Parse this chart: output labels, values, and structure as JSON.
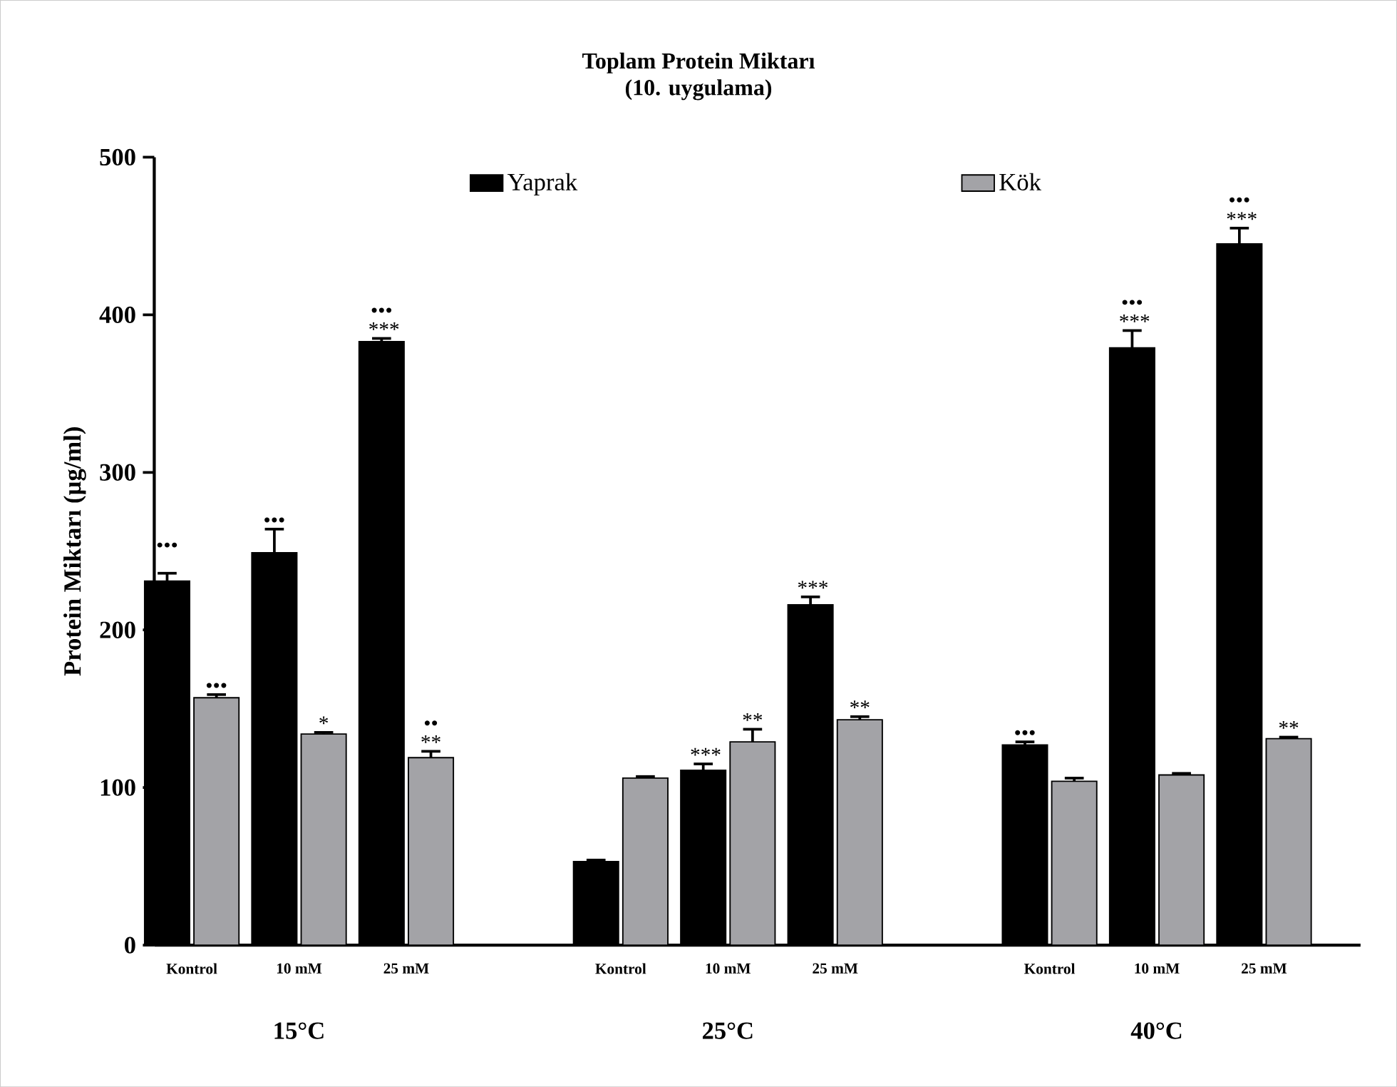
{
  "chart_data": {
    "type": "bar",
    "title": "Toplam Protein Miktarı",
    "subtitle": "(10. uygulama)",
    "ylabel": "Protein Miktarı (µg/ml)",
    "categories": [
      "Kontrol",
      "10 mM",
      "25 mM",
      null,
      "Kontrol",
      "10 mM",
      "25 mM",
      null,
      "Kontrol",
      "10 mM",
      "25 mM"
    ],
    "series": [
      {
        "name": "Yaprak",
        "color": "#000000",
        "values": [
          231,
          249,
          383,
          null,
          53,
          111,
          216,
          null,
          127,
          379,
          445
        ],
        "errors": [
          5,
          15,
          2,
          null,
          1,
          4,
          5,
          null,
          2,
          11,
          10
        ],
        "value_labels": [
          "••• ",
          "•••",
          "••• ***",
          null,
          null,
          "***",
          "***",
          null,
          "•••",
          "••• ***",
          "••• ***"
        ]
      },
      {
        "name": "Kök",
        "color": "#a3a3a7",
        "values": [
          157,
          134,
          119,
          null,
          106,
          129,
          143,
          null,
          104,
          108,
          131
        ],
        "errors": [
          2,
          1,
          4,
          null,
          1,
          8,
          2,
          null,
          2,
          1,
          1
        ],
        "value_labels": [
          "•••",
          "*",
          "•• **",
          null,
          null,
          "**",
          "**",
          null,
          null,
          null,
          "**"
        ]
      }
    ],
    "annotations": [
      "15°C",
      "25°C",
      "40°C"
    ],
    "ylim": [
      0,
      500
    ],
    "yticks": [
      0,
      100,
      200,
      300,
      400,
      500
    ],
    "grid": false,
    "legend": "top"
  }
}
